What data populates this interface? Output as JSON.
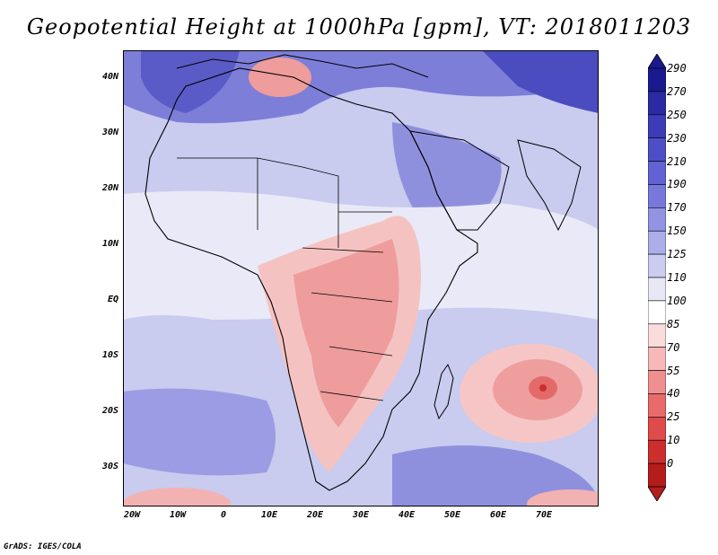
{
  "title": "Geopotential Height at 1000hPa [gpm], VT: 2018011203",
  "credit": "GrADS: IGES/COLA",
  "map": {
    "lat_labels": [
      "40N",
      "30N",
      "20N",
      "10N",
      "EQ",
      "10S",
      "20S",
      "30S"
    ],
    "lon_labels": [
      "20W",
      "10W",
      "0",
      "10E",
      "20E",
      "30E",
      "40E",
      "50E",
      "60E",
      "70E"
    ],
    "background_color": "#c9cbef",
    "features": [
      "africa-high-anomaly-red",
      "madagascar-east-red-cell",
      "south-atlantic-low",
      "arabia-high"
    ]
  },
  "colorbar": {
    "levels": [
      "290",
      "270",
      "250",
      "230",
      "210",
      "190",
      "170",
      "150",
      "125",
      "110",
      "100",
      "85",
      "70",
      "55",
      "40",
      "25",
      "10",
      "0"
    ],
    "colors": [
      "#1a1990",
      "#2b2aa4",
      "#3c3cb8",
      "#4e4ec8",
      "#6262d4",
      "#7878dc",
      "#9393e4",
      "#adade9",
      "#ccccf0",
      "#e7e7f6",
      "#ffffff",
      "#fbdcdc",
      "#f6b8b8",
      "#f08f8f",
      "#e86a6a",
      "#df4b4b",
      "#cc2e2e",
      "#b51c1c"
    ],
    "cap_top_color": "#1a1990",
    "cap_bottom_color": "#b51c1c"
  }
}
